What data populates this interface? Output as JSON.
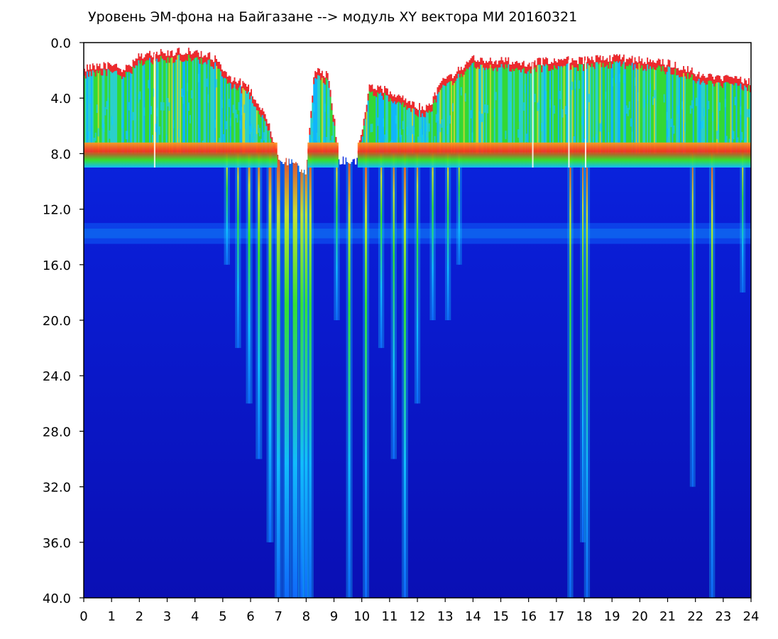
{
  "chart_data": {
    "type": "heatmap",
    "title": "Уровень ЭМ-фона на Байгазане  -->  модуль XY вектора МИ  20160321",
    "xlabel": "",
    "ylabel": "",
    "xlim": [
      0,
      24
    ],
    "ylim": [
      0,
      40
    ],
    "y_inverted": true,
    "x_ticks": [
      0,
      1,
      2,
      3,
      4,
      5,
      6,
      7,
      8,
      9,
      10,
      11,
      12,
      13,
      14,
      15,
      16,
      17,
      18,
      19,
      20,
      21,
      22,
      23,
      24
    ],
    "x_tick_labels": [
      "0",
      "1",
      "2",
      "3",
      "4",
      "5",
      "6",
      "7",
      "8",
      "9",
      "10",
      "11",
      "12",
      "13",
      "14",
      "15",
      "16",
      "17",
      "18",
      "19",
      "20",
      "21",
      "22",
      "23",
      "24"
    ],
    "y_ticks": [
      0,
      4,
      8,
      12,
      16,
      20,
      24,
      28,
      32,
      36,
      40
    ],
    "y_tick_labels": [
      "0.0",
      "4.0",
      "8.0",
      "12.0",
      "16.0",
      "20.0",
      "24.0",
      "28.0",
      "32.0",
      "36.0",
      "40.0"
    ],
    "grid": false,
    "legend": "none",
    "colormap": [
      "#0a0fb4",
      "#0b2fe6",
      "#0f6cff",
      "#12c8ff",
      "#2fe6c8",
      "#39f01e",
      "#d8f01e",
      "#ff9a1e",
      "#ff2a1e",
      "#ffffff"
    ],
    "upper_envelope": [
      [
        0,
        1.8
      ],
      [
        1,
        1.6
      ],
      [
        1.5,
        1.9
      ],
      [
        2,
        0.9
      ],
      [
        3,
        0.7
      ],
      [
        4,
        0.6
      ],
      [
        4.8,
        1.2
      ],
      [
        5.2,
        2.5
      ],
      [
        5.8,
        3.0
      ],
      [
        6.2,
        4.0
      ],
      [
        6.6,
        5.5
      ],
      [
        7.0,
        8.5
      ],
      [
        7.5,
        8.7
      ],
      [
        8.0,
        9.3
      ],
      [
        8.3,
        2.0
      ],
      [
        8.8,
        2.3
      ],
      [
        9.2,
        8.5
      ],
      [
        9.8,
        8.5
      ],
      [
        10.3,
        3.0
      ],
      [
        11.0,
        3.5
      ],
      [
        11.8,
        4.5
      ],
      [
        12.4,
        4.8
      ],
      [
        12.8,
        3.0
      ],
      [
        13.5,
        2.0
      ],
      [
        14.0,
        1.2
      ],
      [
        15.0,
        1.3
      ],
      [
        16.0,
        1.5
      ],
      [
        17.0,
        1.2
      ],
      [
        18.0,
        1.3
      ],
      [
        19.0,
        1.1
      ],
      [
        20.0,
        1.2
      ],
      [
        21.0,
        1.5
      ],
      [
        21.8,
        2.0
      ],
      [
        22.3,
        2.3
      ],
      [
        23.0,
        2.5
      ],
      [
        24.0,
        2.8
      ]
    ],
    "band_top_y": 8.0,
    "band_bottom_y": 9.0,
    "secondary_band": [
      13.0,
      14.5
    ],
    "disturbances": [
      {
        "x": 5.15,
        "depth": 16,
        "w": 0.06
      },
      {
        "x": 5.55,
        "depth": 22,
        "w": 0.06
      },
      {
        "x": 5.95,
        "depth": 26,
        "w": 0.08
      },
      {
        "x": 6.3,
        "depth": 30,
        "w": 0.08
      },
      {
        "x": 6.7,
        "depth": 36,
        "w": 0.1
      },
      {
        "x": 7.0,
        "depth": 40,
        "w": 0.12
      },
      {
        "x": 7.3,
        "depth": 40,
        "w": 0.16
      },
      {
        "x": 7.6,
        "depth": 40,
        "w": 0.16
      },
      {
        "x": 7.85,
        "depth": 40,
        "w": 0.12
      },
      {
        "x": 8.0,
        "depth": 40,
        "w": 0.1
      },
      {
        "x": 8.15,
        "depth": 40,
        "w": 0.08
      },
      {
        "x": 9.1,
        "depth": 20,
        "w": 0.06
      },
      {
        "x": 9.55,
        "depth": 40,
        "w": 0.08
      },
      {
        "x": 10.15,
        "depth": 40,
        "w": 0.08
      },
      {
        "x": 10.7,
        "depth": 22,
        "w": 0.06
      },
      {
        "x": 11.15,
        "depth": 30,
        "w": 0.06
      },
      {
        "x": 11.55,
        "depth": 40,
        "w": 0.08
      },
      {
        "x": 12.0,
        "depth": 26,
        "w": 0.06
      },
      {
        "x": 12.55,
        "depth": 20,
        "w": 0.06
      },
      {
        "x": 13.1,
        "depth": 20,
        "w": 0.06
      },
      {
        "x": 13.5,
        "depth": 16,
        "w": 0.05
      },
      {
        "x": 17.5,
        "depth": 40,
        "w": 0.06
      },
      {
        "x": 17.95,
        "depth": 36,
        "w": 0.05
      },
      {
        "x": 18.1,
        "depth": 40,
        "w": 0.06
      },
      {
        "x": 21.9,
        "depth": 32,
        "w": 0.05
      },
      {
        "x": 22.6,
        "depth": 40,
        "w": 0.06
      },
      {
        "x": 23.7,
        "depth": 18,
        "w": 0.05
      }
    ],
    "white_gaps": [
      2.55,
      16.15,
      17.45,
      18.05
    ]
  }
}
